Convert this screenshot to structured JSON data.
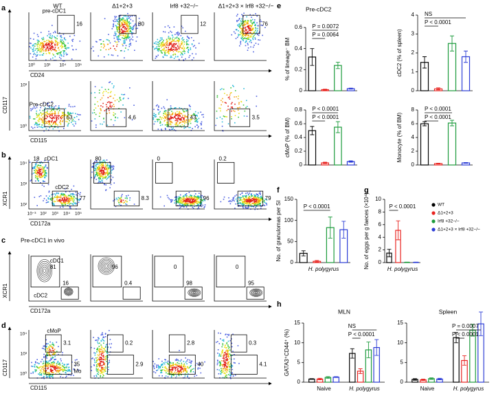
{
  "flow": {
    "columns": [
      "WT",
      "Δ1+2+3",
      "Irf8 +32−/−",
      "Δ1+2+3 × Irf8 +32−/−"
    ],
    "rows": [
      {
        "letter": "a",
        "gate_names": [
          "pre-cDC1"
        ],
        "gates": [
          [
            16
          ],
          [
            80
          ],
          [
            12
          ],
          [
            76
          ]
        ],
        "x_axis": "CD24",
        "x_ticks": [
          "10⁰",
          "10³",
          "10⁴",
          "10⁵"
        ]
      },
      {
        "gate_names": [
          "Pre-cDC2"
        ],
        "gates": [
          [
            63
          ],
          [
            4.6
          ],
          [
            43
          ],
          [
            3.5
          ]
        ],
        "y_axis": "CD117",
        "x_axis": "CD115",
        "y_ticks": [
          "10⁰",
          "10³"
        ]
      },
      {
        "letter": "b",
        "gate_names": [
          "cDC1",
          "cDC2"
        ],
        "gates": [
          [
            18,
            77
          ],
          [
            80,
            8.3
          ],
          [
            0,
            96
          ],
          [
            0.2,
            79
          ]
        ],
        "y_axis": "XCR1",
        "x_axis": "CD172a",
        "y_ticks": [
          "10²",
          "10³",
          "10⁴"
        ],
        "x_ticks": [
          "10⁻³",
          "10²",
          "10³",
          "10⁴",
          "10⁵"
        ]
      },
      {
        "letter": "c",
        "heading": "Pre-cDC1 in vivo",
        "gate_names": [
          "cDC1",
          "cDC2"
        ],
        "gates": [
          [
            81,
            16
          ],
          [
            96,
            0.4
          ],
          [
            0,
            98
          ],
          [
            0,
            95
          ]
        ],
        "y_axis": "XCR1",
        "x_axis": "CD172a"
      },
      {
        "letter": "d",
        "gate_names": [
          "cMoP",
          "Mo"
        ],
        "gates": [
          [
            3.1,
            35
          ],
          [
            0.2,
            2.9
          ],
          [
            2.8,
            40
          ],
          [
            0.3,
            4.1
          ]
        ],
        "y_axis": "CD117",
        "x_axis": "CD115",
        "y_ticks": [
          "10⁰",
          "10³",
          "10⁴"
        ]
      }
    ]
  },
  "panel_letters": {
    "e": "e",
    "f": "f",
    "g": "g",
    "h": "h"
  },
  "legend": {
    "names": [
      "WT",
      "Δ1+2+3",
      "Irf8 +32−/−",
      "Δ1+2+3 × Irf8 +32−/−"
    ],
    "colors": [
      "#000000",
      "#e8231f",
      "#1a9a3a",
      "#2a3bd6"
    ]
  },
  "chart_data": [
    {
      "type": "bar",
      "title": "Pre-cDC2",
      "ylabel": "% of lineage⁻ BM",
      "ylim": [
        0,
        0.6
      ],
      "yticks": [
        0,
        0.2,
        0.4,
        0.6
      ],
      "values": [
        0.32,
        0.01,
        0.24,
        0.02
      ],
      "errors": [
        0.08,
        0.005,
        0.03,
        0.005
      ],
      "annotations": [
        "P = 0.0064",
        "P = 0.0072"
      ]
    },
    {
      "type": "bar",
      "ylabel": "cDC2 (% of spleen)",
      "ylim": [
        0,
        4
      ],
      "yticks": [
        0,
        1,
        2,
        3,
        4
      ],
      "values": [
        1.5,
        0.1,
        2.5,
        1.8
      ],
      "errors": [
        0.3,
        0.05,
        0.4,
        0.3
      ],
      "annotations": [
        "NS",
        "P < 0.0001"
      ]
    },
    {
      "type": "bar",
      "ylabel": "cMoP (% of BM)",
      "ylim": [
        0,
        0.8
      ],
      "yticks": [
        0,
        0.2,
        0.4,
        0.6,
        0.8
      ],
      "values": [
        0.5,
        0.03,
        0.55,
        0.05
      ],
      "errors": [
        0.06,
        0.01,
        0.08,
        0.01
      ],
      "annotations": [
        "P < 0.0001",
        "P < 0.0001"
      ]
    },
    {
      "type": "bar",
      "ylabel": "Monocyte (% of BM)",
      "ylim": [
        0,
        8
      ],
      "yticks": [
        0,
        2,
        4,
        6,
        8
      ],
      "values": [
        6,
        0.2,
        6.1,
        0.3
      ],
      "errors": [
        0.3,
        0.05,
        0.4,
        0.05
      ],
      "annotations": [
        "P < 0.0001",
        "P < 0.0001"
      ]
    },
    {
      "type": "bar",
      "ylabel": "No. of granulomas per SI",
      "xlabel": "H. polygyrus",
      "ylim": [
        0,
        150
      ],
      "yticks": [
        0,
        50,
        100,
        150
      ],
      "values": [
        22,
        3,
        83,
        78
      ],
      "errors": [
        6,
        2,
        25,
        20
      ],
      "annotations": [
        "P < 0.0001"
      ]
    },
    {
      "type": "bar",
      "ylabel": "No. of eggs per g faeces (×10⁴)",
      "xlabel": "H. polygyrus",
      "ylim": [
        0,
        10
      ],
      "yticks": [
        0,
        2,
        4,
        6,
        8,
        10
      ],
      "values": [
        1.5,
        5.1,
        0.05,
        0.05
      ],
      "errors": [
        0.6,
        1.5,
        0.03,
        0.03
      ],
      "annotations": [
        "P < 0.0001"
      ]
    },
    {
      "type": "grouped_bar",
      "title": "MLN",
      "ylabel": "GATA3⁺CD44⁺ (%)",
      "categories": [
        "Naive",
        "H. polygyrus"
      ],
      "ylim": [
        0,
        15
      ],
      "yticks": [
        0,
        5,
        10,
        15
      ],
      "series": [
        {
          "values": [
            0.8,
            7.3
          ],
          "errors": [
            0.1,
            1.2
          ]
        },
        {
          "values": [
            0.8,
            2.8
          ],
          "errors": [
            0.2,
            0.6
          ]
        },
        {
          "values": [
            1.2,
            8.2
          ],
          "errors": [
            0.2,
            2
          ]
        },
        {
          "values": [
            1.3,
            8.8
          ],
          "errors": [
            0.1,
            2
          ]
        }
      ],
      "annotations": [
        "P < 0.0001",
        "NS"
      ]
    },
    {
      "type": "grouped_bar",
      "title": "Spleen",
      "categories": [
        "Naive",
        "H. polygyrus"
      ],
      "ylim": [
        0,
        15
      ],
      "yticks": [
        0,
        5,
        10,
        15
      ],
      "series": [
        {
          "values": [
            0.7,
            11.3
          ],
          "errors": [
            0.2,
            1.3
          ]
        },
        {
          "values": [
            0.6,
            5.5
          ],
          "errors": [
            0.2,
            1.2
          ]
        },
        {
          "values": [
            0.9,
            13.2
          ],
          "errors": [
            0.2,
            1.5
          ]
        },
        {
          "values": [
            0.8,
            14.8
          ],
          "errors": [
            0.2,
            3
          ]
        }
      ],
      "annotations": [
        "P < 0.0001",
        "P = 0.0007"
      ]
    }
  ]
}
